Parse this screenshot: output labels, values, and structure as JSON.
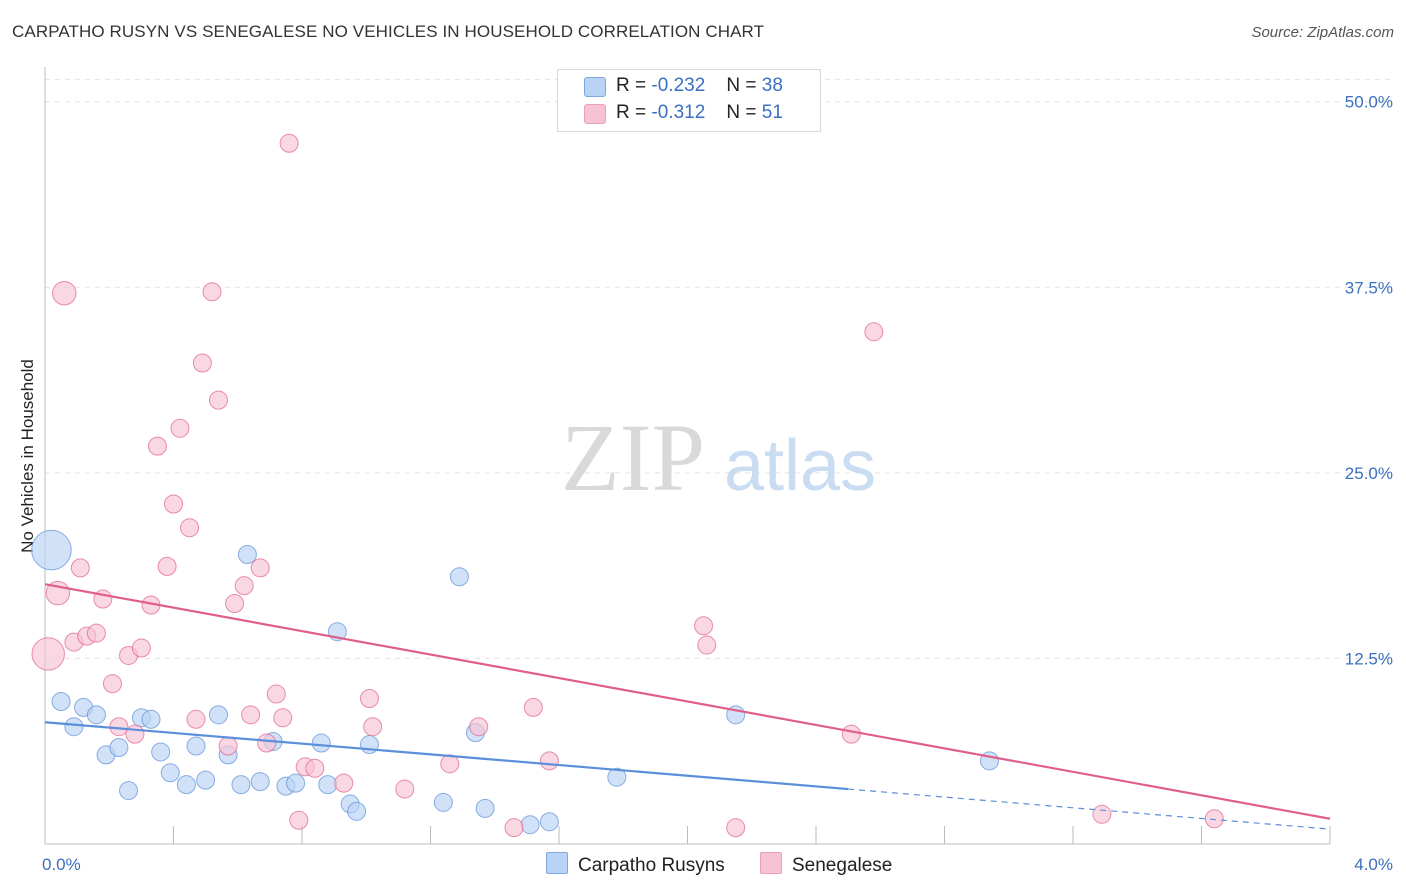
{
  "title": "CARPATHO RUSYN VS SENEGALESE NO VEHICLES IN HOUSEHOLD CORRELATION CHART",
  "source": "Source: ZipAtlas.com",
  "watermark": {
    "zip": "ZIP",
    "atlas": "atlas"
  },
  "legend": {
    "r_label": "R =",
    "n_label": "N =",
    "series": [
      {
        "name": "Carpatho Rusyns",
        "r": "-0.232",
        "n": "38",
        "color": "#5b8fd9",
        "fill": "#b9d3f4"
      },
      {
        "name": "Senegalese",
        "r": "-0.312",
        "n": "51",
        "color": "#e05f8a",
        "fill": "#f7c3d4"
      }
    ]
  },
  "chart_data": {
    "type": "scatter",
    "title": "CARPATHO RUSYN VS SENEGALESE NO VEHICLES IN HOUSEHOLD CORRELATION CHART",
    "xlabel": "",
    "ylabel": "No Vehicles in Household",
    "xlim": [
      0,
      4.0
    ],
    "ylim": [
      0,
      52
    ],
    "x_tick_labels": [
      "0.0%",
      "4.0%"
    ],
    "y_ticks": [
      12.5,
      25.0,
      37.5,
      50.0
    ],
    "y_tick_labels": [
      "12.5%",
      "25.0%",
      "37.5%",
      "50.0%"
    ],
    "grid": true,
    "series": [
      {
        "name": "Carpatho Rusyns",
        "color": "#5b8fd9",
        "fill": "#b9d3f4",
        "trend": {
          "x0": 0.0,
          "y0": 8.2,
          "x1": 2.5,
          "y1": 3.7,
          "x_dash_end": 4.0,
          "y_dash_end": 1.0
        },
        "points": [
          {
            "x": 0.02,
            "y": 19.8,
            "s": 2.2
          },
          {
            "x": 0.05,
            "y": 9.6,
            "s": 1
          },
          {
            "x": 0.09,
            "y": 7.9,
            "s": 1
          },
          {
            "x": 0.12,
            "y": 9.2,
            "s": 1
          },
          {
            "x": 0.16,
            "y": 8.7,
            "s": 1
          },
          {
            "x": 0.19,
            "y": 6.0,
            "s": 1
          },
          {
            "x": 0.23,
            "y": 6.5,
            "s": 1
          },
          {
            "x": 0.26,
            "y": 3.6,
            "s": 1
          },
          {
            "x": 0.3,
            "y": 8.5,
            "s": 1
          },
          {
            "x": 0.33,
            "y": 8.4,
            "s": 1
          },
          {
            "x": 0.36,
            "y": 6.2,
            "s": 1
          },
          {
            "x": 0.39,
            "y": 4.8,
            "s": 1
          },
          {
            "x": 0.44,
            "y": 4.0,
            "s": 1
          },
          {
            "x": 0.47,
            "y": 6.6,
            "s": 1
          },
          {
            "x": 0.5,
            "y": 4.3,
            "s": 1
          },
          {
            "x": 0.54,
            "y": 8.7,
            "s": 1
          },
          {
            "x": 0.57,
            "y": 6.0,
            "s": 1
          },
          {
            "x": 0.61,
            "y": 4.0,
            "s": 1
          },
          {
            "x": 0.63,
            "y": 19.5,
            "s": 1
          },
          {
            "x": 0.67,
            "y": 4.2,
            "s": 1
          },
          {
            "x": 0.71,
            "y": 6.9,
            "s": 1
          },
          {
            "x": 0.75,
            "y": 3.9,
            "s": 1
          },
          {
            "x": 0.78,
            "y": 4.1,
            "s": 1
          },
          {
            "x": 0.86,
            "y": 6.8,
            "s": 1
          },
          {
            "x": 0.88,
            "y": 4.0,
            "s": 1
          },
          {
            "x": 0.91,
            "y": 14.3,
            "s": 1
          },
          {
            "x": 0.95,
            "y": 2.7,
            "s": 1
          },
          {
            "x": 0.97,
            "y": 2.2,
            "s": 1
          },
          {
            "x": 1.01,
            "y": 6.7,
            "s": 1
          },
          {
            "x": 1.24,
            "y": 2.8,
            "s": 1
          },
          {
            "x": 1.29,
            "y": 18.0,
            "s": 1
          },
          {
            "x": 1.34,
            "y": 7.5,
            "s": 1
          },
          {
            "x": 1.37,
            "y": 2.4,
            "s": 1
          },
          {
            "x": 1.51,
            "y": 1.3,
            "s": 1
          },
          {
            "x": 1.57,
            "y": 1.5,
            "s": 1
          },
          {
            "x": 1.78,
            "y": 4.5,
            "s": 1
          },
          {
            "x": 2.15,
            "y": 8.7,
            "s": 1
          },
          {
            "x": 2.94,
            "y": 5.6,
            "s": 1
          }
        ]
      },
      {
        "name": "Senegalese",
        "color": "#e05f8a",
        "fill": "#f7c3d4",
        "trend": {
          "x0": 0.0,
          "y0": 17.5,
          "x1": 4.0,
          "y1": 1.7
        },
        "points": [
          {
            "x": 0.01,
            "y": 12.8,
            "s": 1.8
          },
          {
            "x": 0.04,
            "y": 16.9,
            "s": 1.3
          },
          {
            "x": 0.06,
            "y": 37.1,
            "s": 1.3
          },
          {
            "x": 0.09,
            "y": 13.6,
            "s": 1
          },
          {
            "x": 0.11,
            "y": 18.6,
            "s": 1
          },
          {
            "x": 0.13,
            "y": 14.0,
            "s": 1
          },
          {
            "x": 0.16,
            "y": 14.2,
            "s": 1
          },
          {
            "x": 0.18,
            "y": 16.5,
            "s": 1
          },
          {
            "x": 0.21,
            "y": 10.8,
            "s": 1
          },
          {
            "x": 0.23,
            "y": 7.9,
            "s": 1
          },
          {
            "x": 0.26,
            "y": 12.7,
            "s": 1
          },
          {
            "x": 0.28,
            "y": 7.4,
            "s": 1
          },
          {
            "x": 0.3,
            "y": 13.2,
            "s": 1
          },
          {
            "x": 0.33,
            "y": 16.1,
            "s": 1
          },
          {
            "x": 0.35,
            "y": 26.8,
            "s": 1
          },
          {
            "x": 0.38,
            "y": 18.7,
            "s": 1
          },
          {
            "x": 0.4,
            "y": 22.9,
            "s": 1
          },
          {
            "x": 0.42,
            "y": 28.0,
            "s": 1
          },
          {
            "x": 0.45,
            "y": 21.3,
            "s": 1
          },
          {
            "x": 0.47,
            "y": 8.4,
            "s": 1
          },
          {
            "x": 0.49,
            "y": 32.4,
            "s": 1
          },
          {
            "x": 0.52,
            "y": 37.2,
            "s": 1
          },
          {
            "x": 0.54,
            "y": 29.9,
            "s": 1
          },
          {
            "x": 0.57,
            "y": 6.6,
            "s": 1
          },
          {
            "x": 0.59,
            "y": 16.2,
            "s": 1
          },
          {
            "x": 0.62,
            "y": 17.4,
            "s": 1
          },
          {
            "x": 0.64,
            "y": 8.7,
            "s": 1
          },
          {
            "x": 0.67,
            "y": 18.6,
            "s": 1
          },
          {
            "x": 0.69,
            "y": 6.8,
            "s": 1
          },
          {
            "x": 0.72,
            "y": 10.1,
            "s": 1
          },
          {
            "x": 0.74,
            "y": 8.5,
            "s": 1
          },
          {
            "x": 0.76,
            "y": 47.2,
            "s": 1
          },
          {
            "x": 0.79,
            "y": 1.6,
            "s": 1
          },
          {
            "x": 0.81,
            "y": 5.2,
            "s": 1
          },
          {
            "x": 0.84,
            "y": 5.1,
            "s": 1
          },
          {
            "x": 0.93,
            "y": 4.1,
            "s": 1
          },
          {
            "x": 1.01,
            "y": 9.8,
            "s": 1
          },
          {
            "x": 1.02,
            "y": 7.9,
            "s": 1
          },
          {
            "x": 1.12,
            "y": 3.7,
            "s": 1
          },
          {
            "x": 1.26,
            "y": 5.4,
            "s": 1
          },
          {
            "x": 1.35,
            "y": 7.9,
            "s": 1
          },
          {
            "x": 1.46,
            "y": 1.1,
            "s": 1
          },
          {
            "x": 1.52,
            "y": 9.2,
            "s": 1
          },
          {
            "x": 1.57,
            "y": 5.6,
            "s": 1
          },
          {
            "x": 2.05,
            "y": 14.7,
            "s": 1
          },
          {
            "x": 2.06,
            "y": 13.4,
            "s": 1
          },
          {
            "x": 2.15,
            "y": 1.1,
            "s": 1
          },
          {
            "x": 2.58,
            "y": 34.5,
            "s": 1
          },
          {
            "x": 2.51,
            "y": 7.4,
            "s": 1
          },
          {
            "x": 3.29,
            "y": 2.0,
            "s": 1
          },
          {
            "x": 3.64,
            "y": 1.7,
            "s": 1
          }
        ]
      }
    ]
  }
}
